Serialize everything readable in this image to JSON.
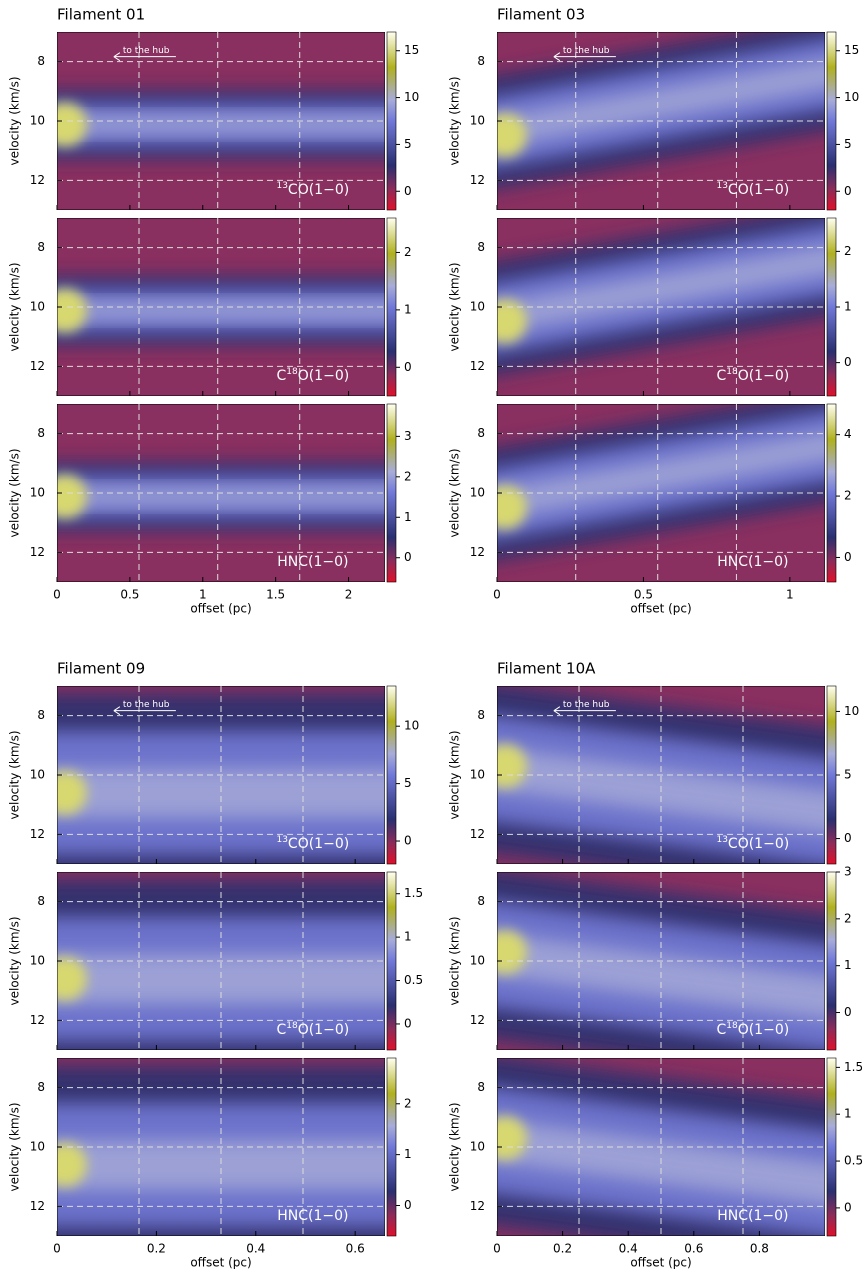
{
  "figures": [
    {
      "title": "Filament 01",
      "xlabel": "offset (pc)",
      "ylabel": "velocity (km/s)",
      "annotation": "to the hub",
      "xlim": [
        0,
        2.25
      ],
      "xticks": [
        0,
        0.5,
        1,
        1.5,
        2
      ],
      "ylim": [
        7,
        13
      ],
      "yticks": [
        8,
        10,
        12
      ],
      "panels": [
        {
          "label": {
            "sup": "13",
            "post": "CO(1−0)"
          },
          "clim": [
            -2,
            17
          ],
          "cticks": [
            0,
            5,
            10,
            15
          ]
        },
        {
          "label": {
            "pre": "C",
            "sup": "18",
            "post": "O(1−0)"
          },
          "clim": [
            -0.5,
            2.6
          ],
          "cticks": [
            0,
            1,
            2
          ]
        },
        {
          "label": {
            "post": "HNC(1−0)"
          },
          "clim": [
            -0.6,
            3.8
          ],
          "cticks": [
            0,
            1,
            2,
            3
          ]
        }
      ]
    },
    {
      "title": "Filament 03",
      "xlabel": "offset (pc)",
      "ylabel": "velocity (km/s)",
      "annotation": "to the hub",
      "xlim": [
        0,
        1.12
      ],
      "xticks": [
        0,
        0.5,
        1
      ],
      "ylim": [
        7,
        13
      ],
      "yticks": [
        8,
        10,
        12
      ],
      "panels": [
        {
          "label": {
            "sup": "13",
            "post": "CO(1−0)"
          },
          "clim": [
            -2,
            17
          ],
          "cticks": [
            0,
            5,
            10,
            15
          ]
        },
        {
          "label": {
            "pre": "C",
            "sup": "18",
            "post": "O(1−0)"
          },
          "clim": [
            -0.6,
            2.6
          ],
          "cticks": [
            0,
            1,
            2
          ]
        },
        {
          "label": {
            "post": "HNC(1−0)"
          },
          "clim": [
            -0.8,
            5
          ],
          "cticks": [
            0,
            2,
            4
          ]
        }
      ]
    },
    {
      "title": "Filament 09",
      "xlabel": "offset (pc)",
      "ylabel": "velocity (km/s)",
      "annotation": "to the hub",
      "xlim": [
        0,
        0.66
      ],
      "xticks": [
        0,
        0.2,
        0.4,
        0.6
      ],
      "ylim": [
        7,
        13
      ],
      "yticks": [
        8,
        10,
        12
      ],
      "panels": [
        {
          "label": {
            "sup": "13",
            "post": "CO(1−0)"
          },
          "clim": [
            -2,
            13.5
          ],
          "cticks": [
            0,
            5,
            10
          ]
        },
        {
          "label": {
            "pre": "C",
            "sup": "18",
            "post": "O(1−0)"
          },
          "clim": [
            -0.3,
            1.75
          ],
          "cticks": [
            0,
            0.5,
            1,
            1.5
          ]
        },
        {
          "label": {
            "post": "HNC(1−0)"
          },
          "clim": [
            -0.6,
            2.9
          ],
          "cticks": [
            0,
            1,
            2
          ]
        }
      ]
    },
    {
      "title": "Filament 10A",
      "xlabel": "offset (pc)",
      "ylabel": "velocity (km/s)",
      "annotation": "to the hub",
      "xlim": [
        0,
        1.0
      ],
      "xticks": [
        0,
        0.2,
        0.4,
        0.6,
        0.8
      ],
      "ylim": [
        7,
        13
      ],
      "yticks": [
        8,
        10,
        12
      ],
      "panels": [
        {
          "label": {
            "sup": "13",
            "post": "CO(1−0)"
          },
          "clim": [
            -2,
            12
          ],
          "cticks": [
            0,
            5,
            10
          ]
        },
        {
          "label": {
            "pre": "C",
            "sup": "18",
            "post": "O(1−0)"
          },
          "clim": [
            -0.8,
            3
          ],
          "cticks": [
            0,
            1,
            2,
            3
          ]
        },
        {
          "label": {
            "post": "HNC(1−0)"
          },
          "clim": [
            -0.3,
            1.6
          ],
          "cticks": [
            0,
            0.5,
            1,
            1.5
          ]
        }
      ]
    }
  ]
}
